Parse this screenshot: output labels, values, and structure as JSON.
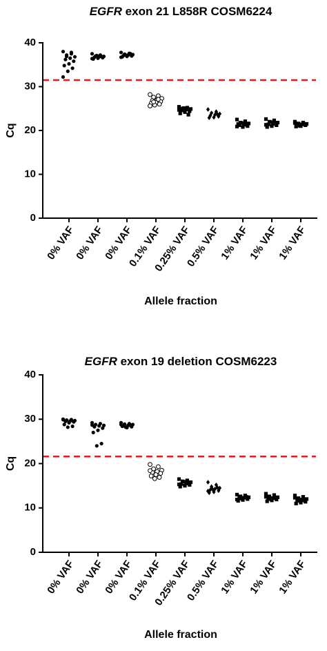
{
  "chart_data": [
    {
      "type": "scatter",
      "title": "EGFR exon 21 L858R COSM6224",
      "italic_word": "EGFR",
      "xlabel": "Allele fraction",
      "ylabel": "Cq",
      "categories": [
        "0% VAF",
        "0% VAF",
        "0% VAF",
        "0.1% VAF",
        "0.25% VAF",
        "0.5% VAF",
        "1% VAF",
        "1% VAF",
        "1% VAF"
      ],
      "markers": [
        "circle",
        "circle",
        "circle",
        "open-circle",
        "square",
        "diamond",
        "square",
        "square",
        "square"
      ],
      "color": "#000000",
      "values": [
        [
          38,
          37.5,
          37.2,
          36.8,
          36.5,
          36.2,
          35.8,
          35.2,
          34.8,
          34.2,
          33.5,
          32.2,
          37.8,
          36.9
        ],
        [
          37.5,
          37.2,
          37,
          36.9,
          36.8,
          36.7,
          36.6,
          36.5,
          36.3,
          36.9,
          37.1,
          36.4
        ],
        [
          37.8,
          37.6,
          37.4,
          37.3,
          37.2,
          37.1,
          37,
          36.9,
          36.8,
          37.5,
          37.2,
          36.7
        ],
        [
          28.2,
          27.9,
          27.6,
          27.3,
          27,
          26.8,
          26.6,
          26.4,
          26.2,
          26,
          25.8,
          25.6,
          27.1,
          26.5
        ],
        [
          25.4,
          25.2,
          25,
          24.9,
          24.8,
          24.6,
          24.4,
          24.2,
          23.9,
          23.6,
          25.1,
          24.7
        ],
        [
          24.8,
          24.3,
          24,
          23.8,
          23.6,
          23.4,
          23.2,
          23,
          22.9,
          23.7
        ],
        [
          22.5,
          22.1,
          21.8,
          21.6,
          21.4,
          21.2,
          21,
          20.8,
          21.5,
          21.3,
          21.7,
          20.9
        ],
        [
          22.6,
          22.3,
          22,
          21.8,
          21.6,
          21.4,
          21.2,
          21,
          20.8,
          21.5,
          21.9,
          21.3
        ],
        [
          22,
          21.8,
          21.6,
          21.5,
          21.4,
          21.3,
          21.2,
          21,
          20.9,
          21.5,
          21.1,
          21.7
        ]
      ],
      "threshold": 31.5,
      "threshold_color": "#e41a1c",
      "ylim": [
        0,
        40
      ],
      "yticks": [
        0,
        10,
        20,
        30,
        40
      ]
    },
    {
      "type": "scatter",
      "title": "EGFR exon 19 deletion COSM6223",
      "italic_word": "EGFR",
      "xlabel": "Allele fraction",
      "ylabel": "Cq",
      "categories": [
        "0% VAF",
        "0% VAF",
        "0% VAF",
        "0.1% VAF",
        "0.25% VAF",
        "0.5% VAF",
        "1% VAF",
        "1% VAF",
        "1% VAF"
      ],
      "markers": [
        "circle",
        "circle",
        "circle",
        "open-circle",
        "square",
        "diamond",
        "square",
        "square",
        "square"
      ],
      "color": "#000000",
      "values": [
        [
          30,
          29.9,
          29.8,
          29.7,
          29.6,
          29.5,
          29.4,
          29.2,
          28.8,
          28.4,
          28.2,
          29.9
        ],
        [
          29.2,
          29,
          28.8,
          28.6,
          28.5,
          28.3,
          28,
          27.5,
          27,
          24.5,
          24,
          28.7
        ],
        [
          29.2,
          29,
          28.9,
          28.8,
          28.6,
          28.5,
          28.3,
          28.1,
          28.4,
          28.7,
          28.2,
          28.8
        ],
        [
          19.8,
          19.3,
          18.8,
          18.5,
          18.2,
          18,
          17.8,
          17.5,
          17.2,
          16.9,
          16.6,
          18.4
        ],
        [
          16.5,
          16.2,
          16,
          15.8,
          15.6,
          15.4,
          15.2,
          15,
          14.8,
          15.5,
          15.9,
          15.3
        ],
        [
          15.8,
          15.2,
          14.8,
          14.5,
          14.3,
          14.1,
          13.9,
          13.6,
          13.4,
          14.6,
          14.2,
          13.8
        ],
        [
          13,
          12.8,
          12.6,
          12.4,
          12.3,
          12.2,
          12,
          11.8,
          11.6,
          12.5,
          12.1,
          11.9
        ],
        [
          13.2,
          12.9,
          12.6,
          12.4,
          12.2,
          12,
          11.9,
          11.7,
          11.5,
          12.3,
          12.1,
          12.5
        ],
        [
          12.8,
          12.5,
          12.2,
          12,
          11.8,
          11.6,
          11.4,
          11.2,
          11,
          11.7,
          11.9,
          12.3
        ]
      ],
      "threshold": 21.6,
      "threshold_color": "#e41a1c",
      "ylim": [
        0,
        40
      ],
      "yticks": [
        0,
        10,
        20,
        30,
        40
      ]
    }
  ]
}
